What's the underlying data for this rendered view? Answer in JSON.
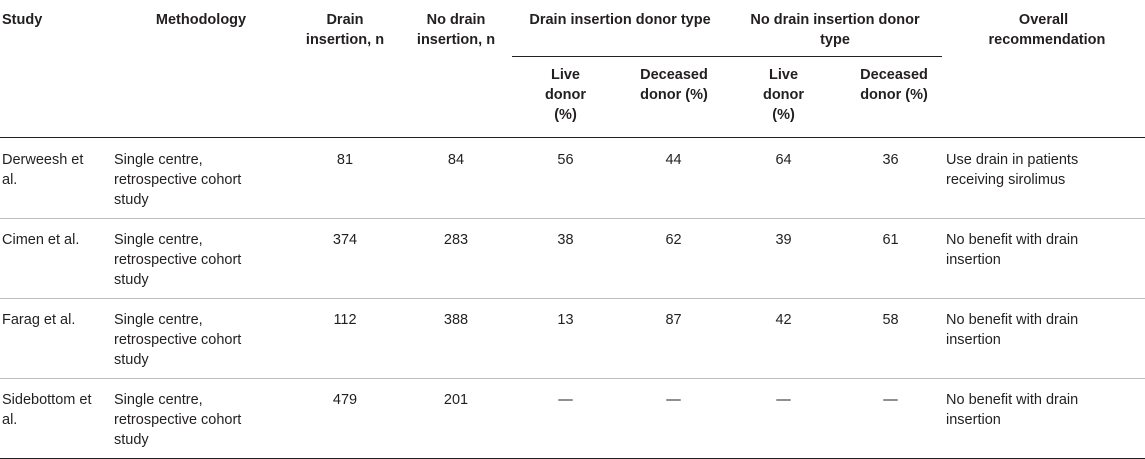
{
  "table": {
    "headers": {
      "study": "Study",
      "methodology": "Methodology",
      "drain_insertion_n": "Drain insertion, n",
      "no_drain_insertion_n": "No drain insertion, n",
      "drain_donor_type": "Drain insertion donor type",
      "no_drain_donor_type": "No drain insertion donor type",
      "overall_recommendation": "Overall recommendation",
      "live_donor": "Live donor (%)",
      "deceased_donor": "Deceased donor (%)"
    },
    "rows": [
      {
        "study": "Derweesh et al.",
        "methodology": "Single centre, retrospective cohort study",
        "drain_n": "81",
        "no_drain_n": "84",
        "drain_live": "56",
        "drain_deceased": "44",
        "no_drain_live": "64",
        "no_drain_deceased": "36",
        "recommendation": "Use drain in patients receiving sirolimus"
      },
      {
        "study": "Cimen et al.",
        "methodology": "Single centre, retrospective cohort study",
        "drain_n": "374",
        "no_drain_n": "283",
        "drain_live": "38",
        "drain_deceased": "62",
        "no_drain_live": "39",
        "no_drain_deceased": "61",
        "recommendation": "No benefit with drain insertion"
      },
      {
        "study": "Farag et al.",
        "methodology": "Single centre, retrospective cohort study",
        "drain_n": "112",
        "no_drain_n": "388",
        "drain_live": "13",
        "drain_deceased": "87",
        "no_drain_live": "42",
        "no_drain_deceased": "58",
        "recommendation": "No benefit with drain insertion"
      },
      {
        "study": "Sidebottom et al.",
        "methodology": "Single centre, retrospective cohort study",
        "drain_n": "479",
        "no_drain_n": "201",
        "drain_live": "—",
        "drain_deceased": "—",
        "no_drain_live": "—",
        "no_drain_deceased": "—",
        "recommendation": "No benefit with drain insertion"
      }
    ]
  }
}
